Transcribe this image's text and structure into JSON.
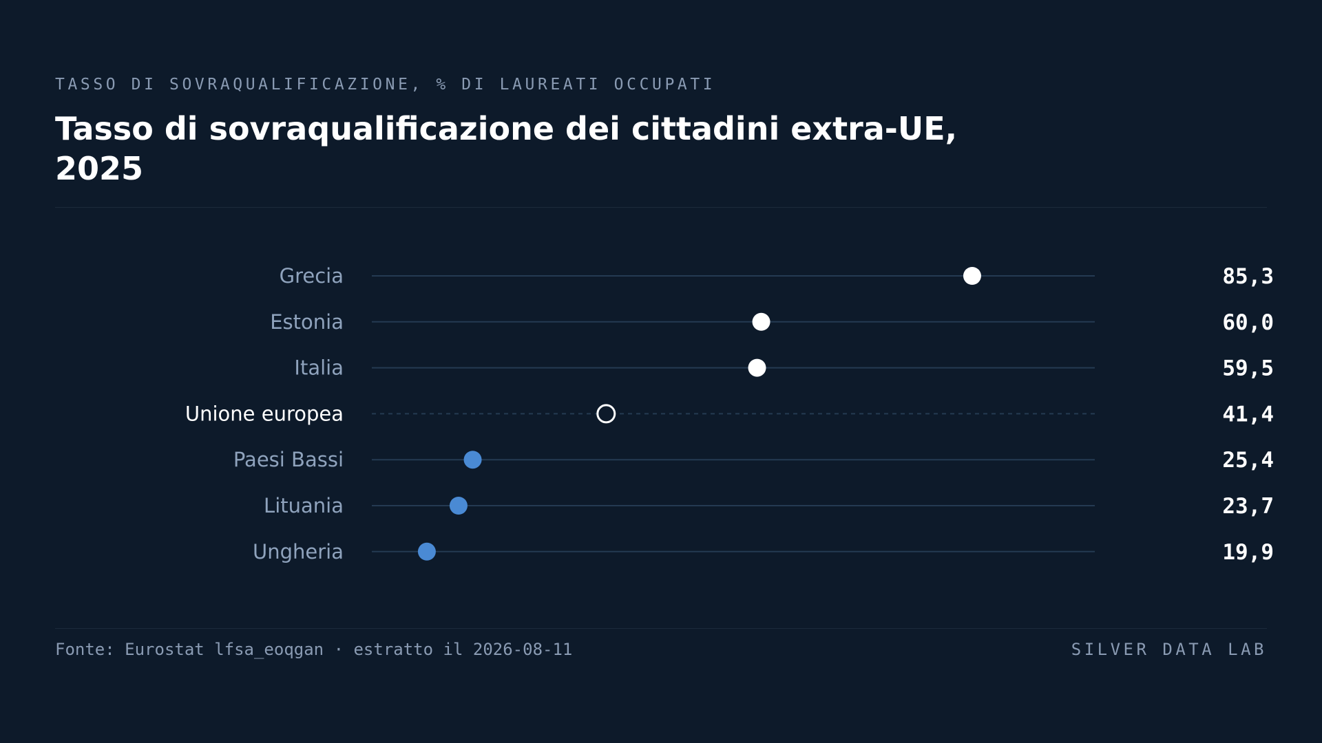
{
  "header": {
    "eyebrow": "TASSO DI SOVRAQUALIFICAZIONE, % DI LAUREATI OCCUPATI",
    "title": "Tasso di sovraqualificazione dei cittadini extra-UE, 2025"
  },
  "footer": {
    "source": "Fonte: Eurostat lfsa_eoqgan · estratto il 2026-08-11",
    "brand": "SILVER DATA LAB"
  },
  "colors": {
    "background": "#0d1a2a",
    "high_dot": "#ffffff",
    "low_dot": "#4a8ad4",
    "reference_dot_stroke": "#ffffff",
    "track": "#243a52",
    "label": "#8fa3bd",
    "reference_label": "#ffffff",
    "value": "#ffffff"
  },
  "chart_data": {
    "type": "dot",
    "title": "Tasso di sovraqualificazione dei cittadini extra-UE, 2025",
    "xlim": [
      13.3,
      100
    ],
    "grid": false,
    "legend": "none",
    "categories": [
      "Grecia",
      "Estonia",
      "Italia",
      "Unione europea",
      "Paesi Bassi",
      "Lituania",
      "Ungheria"
    ],
    "values": [
      85.3,
      60.0,
      59.5,
      41.4,
      25.4,
      23.7,
      19.9
    ],
    "value_labels": [
      "85,3",
      "60,0",
      "59,5",
      "41,4",
      "25,4",
      "23,7",
      "19,9"
    ],
    "styles": [
      "high",
      "high",
      "high",
      "reference",
      "low",
      "low",
      "low"
    ]
  }
}
